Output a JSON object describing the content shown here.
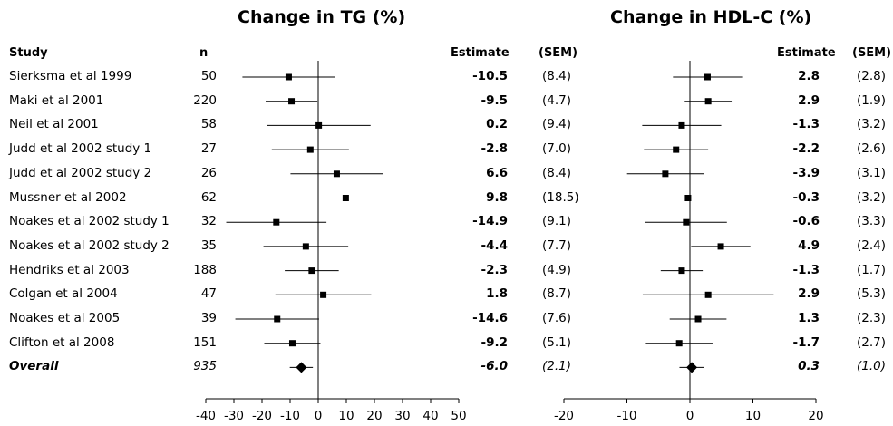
{
  "headers": {
    "study": "Study",
    "n": "n",
    "estimate": "Estimate",
    "sem": "(SEM)"
  },
  "overall_label": "Overall",
  "chart_data": [
    {
      "type": "forest",
      "title": "Change in TG (%)",
      "xlim": [
        -40,
        50
      ],
      "ticks": [
        -40,
        -30,
        -20,
        -10,
        0,
        10,
        20,
        30,
        40,
        50
      ],
      "studies": [
        "Sierksma et al 1999",
        "Maki et al 2001",
        "Neil et al 2001",
        "Judd et al 2002 study 1",
        "Judd et al 2002 study 2",
        "Mussner et al 2002",
        "Noakes et al 2002 study 1",
        "Noakes et al 2002 study 2",
        "Hendriks et al 2003",
        "Colgan et al 2004",
        "Noakes et al 2005",
        "Clifton et al 2008",
        "Overall"
      ],
      "n": [
        "50",
        "220",
        "58",
        "27",
        "26",
        "62",
        "32",
        "35",
        "188",
        "47",
        "39",
        "151",
        "935"
      ],
      "estimate_labels": [
        "-10.5",
        "-9.5",
        "0.2",
        "-2.8",
        "6.6",
        "9.8",
        "-14.9",
        "-4.4",
        "-2.3",
        "1.8",
        "-14.6",
        "-9.2",
        "-6.0"
      ],
      "sem_labels": [
        "(8.4)",
        "(4.7)",
        "(9.4)",
        "(7.0)",
        "(8.4)",
        "(18.5)",
        "(9.1)",
        "(7.7)",
        "(4.9)",
        "(8.7)",
        "(7.6)",
        "(5.1)",
        "(2.1)"
      ],
      "estimates": [
        -10.5,
        -9.5,
        0.2,
        -2.8,
        6.6,
        9.8,
        -14.9,
        -4.4,
        -2.3,
        1.8,
        -14.6,
        -9.2,
        -6.0
      ],
      "sem": [
        8.4,
        4.7,
        9.4,
        7.0,
        8.4,
        18.5,
        9.1,
        7.7,
        4.9,
        8.7,
        7.6,
        5.1,
        2.1
      ]
    },
    {
      "type": "forest",
      "title": "Change in HDL-C (%)",
      "xlim": [
        -20,
        20
      ],
      "ticks": [
        -20,
        -10,
        0,
        10,
        20
      ],
      "studies": [
        "Sierksma et al 1999",
        "Maki et al 2001",
        "Neil et al 2001",
        "Judd et al 2002 study 1",
        "Judd et al 2002 study 2",
        "Mussner et al 2002",
        "Noakes et al 2002 study 1",
        "Noakes et al 2002 study 2",
        "Hendriks et al 2003",
        "Colgan et al 2004",
        "Noakes et al 2005",
        "Clifton et al 2008",
        "Overall"
      ],
      "estimate_labels": [
        "2.8",
        "2.9",
        "-1.3",
        "-2.2",
        "-3.9",
        "-0.3",
        "-0.6",
        "4.9",
        "-1.3",
        "2.9",
        "1.3",
        "-1.7",
        "0.3"
      ],
      "sem_labels": [
        "(2.8)",
        "(1.9)",
        "(3.2)",
        "(2.6)",
        "(3.1)",
        "(3.2)",
        "(3.3)",
        "(2.4)",
        "(1.7)",
        "(5.3)",
        "(2.3)",
        "(2.7)",
        "(1.0)"
      ],
      "estimates": [
        2.8,
        2.9,
        -1.3,
        -2.2,
        -3.9,
        -0.3,
        -0.6,
        4.9,
        -1.3,
        2.9,
        1.3,
        -1.7,
        0.3
      ],
      "sem": [
        2.8,
        1.9,
        3.2,
        2.6,
        3.1,
        3.2,
        3.3,
        2.4,
        1.7,
        5.3,
        2.3,
        2.7,
        1.0
      ]
    }
  ]
}
